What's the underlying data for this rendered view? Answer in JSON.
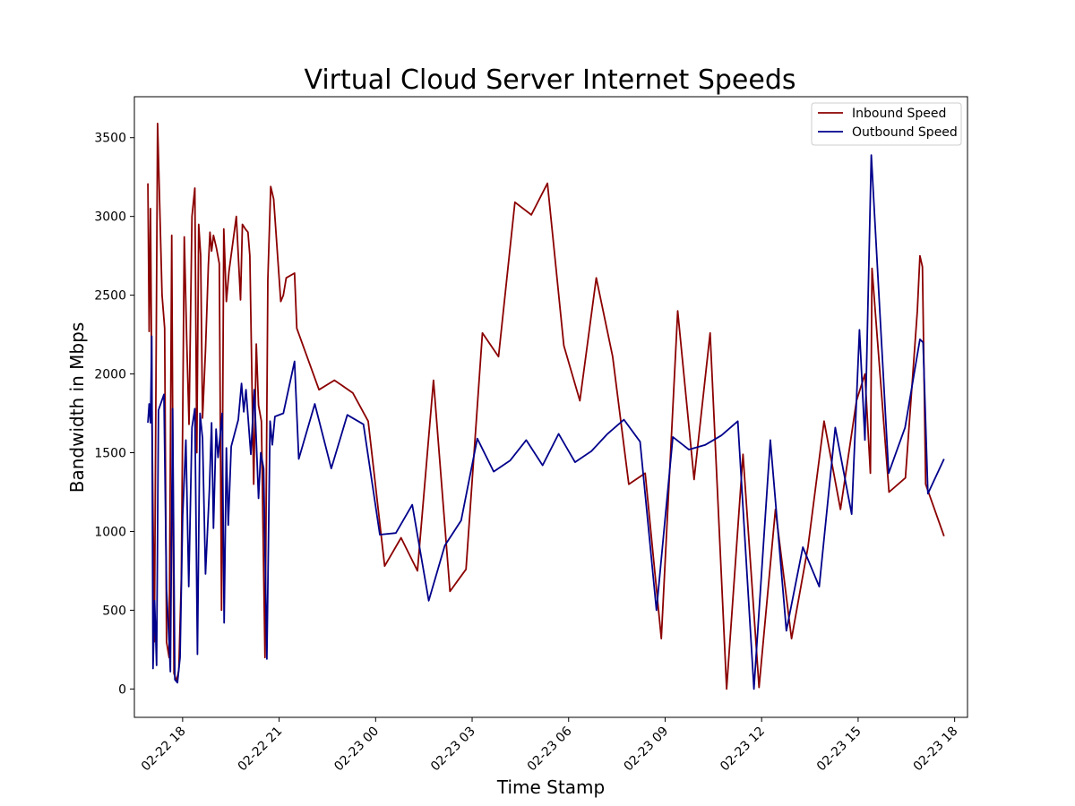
{
  "chart_data": {
    "type": "line",
    "title": "Virtual Cloud Server Internet Speeds",
    "xlabel": "Time Stamp",
    "ylabel": "Bandwidth in Mbps",
    "xlim": [
      16.5,
      42.4
    ],
    "ylim": [
      -180,
      3760
    ],
    "grid": false,
    "legend_position": "top-right",
    "x_ticks": [
      {
        "value": 18,
        "label": "02-22 18"
      },
      {
        "value": 21,
        "label": "02-22 21"
      },
      {
        "value": 24,
        "label": "02-23 00"
      },
      {
        "value": 27,
        "label": "02-23 03"
      },
      {
        "value": 30,
        "label": "02-23 06"
      },
      {
        "value": 33,
        "label": "02-23 09"
      },
      {
        "value": 36,
        "label": "02-23 12"
      },
      {
        "value": 39,
        "label": "02-23 15"
      },
      {
        "value": 42,
        "label": "02-23 18"
      }
    ],
    "y_ticks": [
      {
        "value": 0,
        "label": "0"
      },
      {
        "value": 500,
        "label": "500"
      },
      {
        "value": 1000,
        "label": "1000"
      },
      {
        "value": 1500,
        "label": "1500"
      },
      {
        "value": 2000,
        "label": "2000"
      },
      {
        "value": 2500,
        "label": "2500"
      },
      {
        "value": 3000,
        "label": "3000"
      },
      {
        "value": 3500,
        "label": "3500"
      }
    ],
    "series": [
      {
        "name": "Inbound Speed",
        "color": "#8b0000",
        "points": [
          [
            16.92,
            3210
          ],
          [
            16.96,
            2270
          ],
          [
            17.0,
            3050
          ],
          [
            17.05,
            1700
          ],
          [
            17.12,
            300
          ],
          [
            17.22,
            3590
          ],
          [
            17.36,
            2500
          ],
          [
            17.44,
            2290
          ],
          [
            17.5,
            300
          ],
          [
            17.58,
            200
          ],
          [
            17.66,
            2880
          ],
          [
            17.73,
            100
          ],
          [
            17.81,
            50
          ],
          [
            17.88,
            120
          ],
          [
            17.96,
            700
          ],
          [
            18.05,
            2870
          ],
          [
            18.13,
            2200
          ],
          [
            18.2,
            1680
          ],
          [
            18.29,
            3000
          ],
          [
            18.38,
            3180
          ],
          [
            18.44,
            1500
          ],
          [
            18.5,
            2950
          ],
          [
            18.56,
            2750
          ],
          [
            18.62,
            1720
          ],
          [
            18.71,
            2150
          ],
          [
            18.8,
            2690
          ],
          [
            18.85,
            2900
          ],
          [
            18.9,
            2780
          ],
          [
            18.96,
            2880
          ],
          [
            19.05,
            2800
          ],
          [
            19.14,
            2700
          ],
          [
            19.21,
            500
          ],
          [
            19.28,
            2920
          ],
          [
            19.36,
            2460
          ],
          [
            19.44,
            2650
          ],
          [
            19.59,
            2880
          ],
          [
            19.67,
            3000
          ],
          [
            19.8,
            2470
          ],
          [
            19.86,
            2950
          ],
          [
            19.95,
            2920
          ],
          [
            20.03,
            2900
          ],
          [
            20.09,
            2750
          ],
          [
            20.15,
            2000
          ],
          [
            20.21,
            1300
          ],
          [
            20.29,
            2190
          ],
          [
            20.36,
            1800
          ],
          [
            20.45,
            1700
          ],
          [
            20.56,
            200
          ],
          [
            20.65,
            2600
          ],
          [
            20.74,
            3190
          ],
          [
            20.83,
            3110
          ],
          [
            21.05,
            2460
          ],
          [
            21.13,
            2500
          ],
          [
            21.22,
            2610
          ],
          [
            21.48,
            2640
          ],
          [
            21.55,
            2290
          ],
          [
            22.24,
            1900
          ],
          [
            22.72,
            1960
          ],
          [
            23.29,
            1880
          ],
          [
            23.77,
            1700
          ],
          [
            24.28,
            780
          ],
          [
            24.79,
            960
          ],
          [
            25.3,
            750
          ],
          [
            25.8,
            1960
          ],
          [
            26.31,
            620
          ],
          [
            26.81,
            760
          ],
          [
            27.32,
            2260
          ],
          [
            27.82,
            2110
          ],
          [
            28.33,
            3090
          ],
          [
            28.84,
            3010
          ],
          [
            29.34,
            3210
          ],
          [
            29.85,
            2180
          ],
          [
            30.35,
            1830
          ],
          [
            30.86,
            2610
          ],
          [
            31.37,
            2110
          ],
          [
            31.87,
            1300
          ],
          [
            32.38,
            1370
          ],
          [
            32.88,
            320
          ],
          [
            33.39,
            2400
          ],
          [
            33.9,
            1330
          ],
          [
            34.4,
            2260
          ],
          [
            34.91,
            0
          ],
          [
            35.42,
            1490
          ],
          [
            35.92,
            10
          ],
          [
            36.43,
            1140
          ],
          [
            36.93,
            320
          ],
          [
            37.44,
            900
          ],
          [
            37.94,
            1700
          ],
          [
            38.45,
            1140
          ],
          [
            38.95,
            1830
          ],
          [
            39.21,
            2000
          ],
          [
            39.38,
            1370
          ],
          [
            39.43,
            2670
          ],
          [
            39.96,
            1250
          ],
          [
            40.47,
            1340
          ],
          [
            40.84,
            2400
          ],
          [
            40.92,
            2750
          ],
          [
            41.0,
            2680
          ],
          [
            41.1,
            1300
          ],
          [
            41.67,
            970
          ]
        ]
      },
      {
        "name": "Outbound Speed",
        "color": "#00008b",
        "points": [
          [
            16.92,
            1690
          ],
          [
            16.96,
            1810
          ],
          [
            17.0,
            1690
          ],
          [
            17.04,
            2240
          ],
          [
            17.08,
            130
          ],
          [
            17.13,
            560
          ],
          [
            17.19,
            150
          ],
          [
            17.25,
            1770
          ],
          [
            17.42,
            1870
          ],
          [
            17.5,
            630
          ],
          [
            17.58,
            300
          ],
          [
            17.62,
            110
          ],
          [
            17.69,
            1780
          ],
          [
            17.76,
            60
          ],
          [
            17.84,
            40
          ],
          [
            17.92,
            200
          ],
          [
            18.0,
            1100
          ],
          [
            18.1,
            1580
          ],
          [
            18.19,
            650
          ],
          [
            18.29,
            1660
          ],
          [
            18.38,
            1780
          ],
          [
            18.46,
            220
          ],
          [
            18.54,
            1750
          ],
          [
            18.62,
            1590
          ],
          [
            18.71,
            730
          ],
          [
            18.83,
            1260
          ],
          [
            18.9,
            1690
          ],
          [
            18.96,
            1020
          ],
          [
            19.04,
            1650
          ],
          [
            19.1,
            1470
          ],
          [
            19.23,
            1750
          ],
          [
            19.29,
            420
          ],
          [
            19.36,
            1530
          ],
          [
            19.42,
            1040
          ],
          [
            19.51,
            1540
          ],
          [
            19.73,
            1710
          ],
          [
            19.83,
            1940
          ],
          [
            19.9,
            1760
          ],
          [
            19.97,
            1900
          ],
          [
            20.12,
            1490
          ],
          [
            20.23,
            1900
          ],
          [
            20.36,
            1210
          ],
          [
            20.43,
            1500
          ],
          [
            20.52,
            1400
          ],
          [
            20.62,
            190
          ],
          [
            20.72,
            1700
          ],
          [
            20.79,
            1550
          ],
          [
            20.87,
            1730
          ],
          [
            21.13,
            1750
          ],
          [
            21.48,
            2080
          ],
          [
            21.61,
            1460
          ],
          [
            22.11,
            1810
          ],
          [
            22.62,
            1400
          ],
          [
            23.12,
            1740
          ],
          [
            23.62,
            1680
          ],
          [
            24.13,
            980
          ],
          [
            24.63,
            990
          ],
          [
            25.14,
            1170
          ],
          [
            25.65,
            560
          ],
          [
            26.15,
            910
          ],
          [
            26.66,
            1070
          ],
          [
            27.16,
            1590
          ],
          [
            27.67,
            1380
          ],
          [
            28.18,
            1450
          ],
          [
            28.68,
            1580
          ],
          [
            29.19,
            1420
          ],
          [
            29.69,
            1620
          ],
          [
            30.2,
            1440
          ],
          [
            30.71,
            1510
          ],
          [
            31.21,
            1620
          ],
          [
            31.72,
            1710
          ],
          [
            32.22,
            1570
          ],
          [
            32.73,
            500
          ],
          [
            33.24,
            1600
          ],
          [
            33.74,
            1520
          ],
          [
            34.25,
            1550
          ],
          [
            34.75,
            1610
          ],
          [
            35.26,
            1700
          ],
          [
            35.76,
            0
          ],
          [
            36.27,
            1580
          ],
          [
            36.77,
            370
          ],
          [
            37.28,
            900
          ],
          [
            37.79,
            650
          ],
          [
            38.29,
            1660
          ],
          [
            38.8,
            1110
          ],
          [
            39.04,
            2280
          ],
          [
            39.21,
            1580
          ],
          [
            39.41,
            3390
          ],
          [
            39.95,
            1370
          ],
          [
            40.46,
            1660
          ],
          [
            40.92,
            2220
          ],
          [
            41.02,
            2200
          ],
          [
            41.17,
            1240
          ],
          [
            41.67,
            1460
          ]
        ]
      }
    ]
  }
}
